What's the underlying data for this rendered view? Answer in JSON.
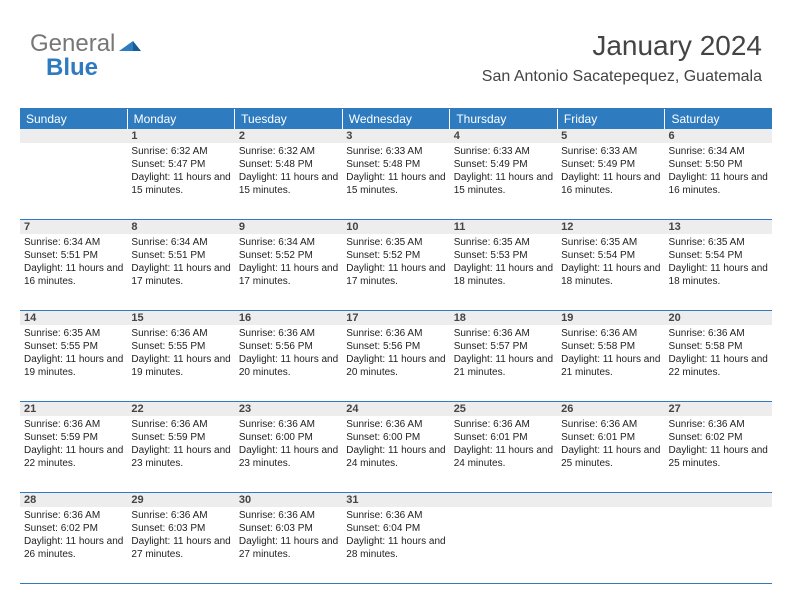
{
  "logo": {
    "text1": "General",
    "text2": "Blue"
  },
  "header": {
    "month": "January 2024",
    "location": "San Antonio Sacatepequez, Guatemala"
  },
  "colors": {
    "accent": "#2f7bbf",
    "daynum_bg": "#ededed",
    "text": "#333333"
  },
  "weekdays": [
    "Sunday",
    "Monday",
    "Tuesday",
    "Wednesday",
    "Thursday",
    "Friday",
    "Saturday"
  ],
  "first_weekday_index": 1,
  "days": [
    {
      "n": 1,
      "sunrise": "6:32 AM",
      "sunset": "5:47 PM",
      "daylight": "11 hours and 15 minutes."
    },
    {
      "n": 2,
      "sunrise": "6:32 AM",
      "sunset": "5:48 PM",
      "daylight": "11 hours and 15 minutes."
    },
    {
      "n": 3,
      "sunrise": "6:33 AM",
      "sunset": "5:48 PM",
      "daylight": "11 hours and 15 minutes."
    },
    {
      "n": 4,
      "sunrise": "6:33 AM",
      "sunset": "5:49 PM",
      "daylight": "11 hours and 15 minutes."
    },
    {
      "n": 5,
      "sunrise": "6:33 AM",
      "sunset": "5:49 PM",
      "daylight": "11 hours and 16 minutes."
    },
    {
      "n": 6,
      "sunrise": "6:34 AM",
      "sunset": "5:50 PM",
      "daylight": "11 hours and 16 minutes."
    },
    {
      "n": 7,
      "sunrise": "6:34 AM",
      "sunset": "5:51 PM",
      "daylight": "11 hours and 16 minutes."
    },
    {
      "n": 8,
      "sunrise": "6:34 AM",
      "sunset": "5:51 PM",
      "daylight": "11 hours and 17 minutes."
    },
    {
      "n": 9,
      "sunrise": "6:34 AM",
      "sunset": "5:52 PM",
      "daylight": "11 hours and 17 minutes."
    },
    {
      "n": 10,
      "sunrise": "6:35 AM",
      "sunset": "5:52 PM",
      "daylight": "11 hours and 17 minutes."
    },
    {
      "n": 11,
      "sunrise": "6:35 AM",
      "sunset": "5:53 PM",
      "daylight": "11 hours and 18 minutes."
    },
    {
      "n": 12,
      "sunrise": "6:35 AM",
      "sunset": "5:54 PM",
      "daylight": "11 hours and 18 minutes."
    },
    {
      "n": 13,
      "sunrise": "6:35 AM",
      "sunset": "5:54 PM",
      "daylight": "11 hours and 18 minutes."
    },
    {
      "n": 14,
      "sunrise": "6:35 AM",
      "sunset": "5:55 PM",
      "daylight": "11 hours and 19 minutes."
    },
    {
      "n": 15,
      "sunrise": "6:36 AM",
      "sunset": "5:55 PM",
      "daylight": "11 hours and 19 minutes."
    },
    {
      "n": 16,
      "sunrise": "6:36 AM",
      "sunset": "5:56 PM",
      "daylight": "11 hours and 20 minutes."
    },
    {
      "n": 17,
      "sunrise": "6:36 AM",
      "sunset": "5:56 PM",
      "daylight": "11 hours and 20 minutes."
    },
    {
      "n": 18,
      "sunrise": "6:36 AM",
      "sunset": "5:57 PM",
      "daylight": "11 hours and 21 minutes."
    },
    {
      "n": 19,
      "sunrise": "6:36 AM",
      "sunset": "5:58 PM",
      "daylight": "11 hours and 21 minutes."
    },
    {
      "n": 20,
      "sunrise": "6:36 AM",
      "sunset": "5:58 PM",
      "daylight": "11 hours and 22 minutes."
    },
    {
      "n": 21,
      "sunrise": "6:36 AM",
      "sunset": "5:59 PM",
      "daylight": "11 hours and 22 minutes."
    },
    {
      "n": 22,
      "sunrise": "6:36 AM",
      "sunset": "5:59 PM",
      "daylight": "11 hours and 23 minutes."
    },
    {
      "n": 23,
      "sunrise": "6:36 AM",
      "sunset": "6:00 PM",
      "daylight": "11 hours and 23 minutes."
    },
    {
      "n": 24,
      "sunrise": "6:36 AM",
      "sunset": "6:00 PM",
      "daylight": "11 hours and 24 minutes."
    },
    {
      "n": 25,
      "sunrise": "6:36 AM",
      "sunset": "6:01 PM",
      "daylight": "11 hours and 24 minutes."
    },
    {
      "n": 26,
      "sunrise": "6:36 AM",
      "sunset": "6:01 PM",
      "daylight": "11 hours and 25 minutes."
    },
    {
      "n": 27,
      "sunrise": "6:36 AM",
      "sunset": "6:02 PM",
      "daylight": "11 hours and 25 minutes."
    },
    {
      "n": 28,
      "sunrise": "6:36 AM",
      "sunset": "6:02 PM",
      "daylight": "11 hours and 26 minutes."
    },
    {
      "n": 29,
      "sunrise": "6:36 AM",
      "sunset": "6:03 PM",
      "daylight": "11 hours and 27 minutes."
    },
    {
      "n": 30,
      "sunrise": "6:36 AM",
      "sunset": "6:03 PM",
      "daylight": "11 hours and 27 minutes."
    },
    {
      "n": 31,
      "sunrise": "6:36 AM",
      "sunset": "6:04 PM",
      "daylight": "11 hours and 28 minutes."
    }
  ],
  "labels": {
    "sunrise_prefix": "Sunrise: ",
    "sunset_prefix": "Sunset: ",
    "daylight_prefix": "Daylight: "
  }
}
